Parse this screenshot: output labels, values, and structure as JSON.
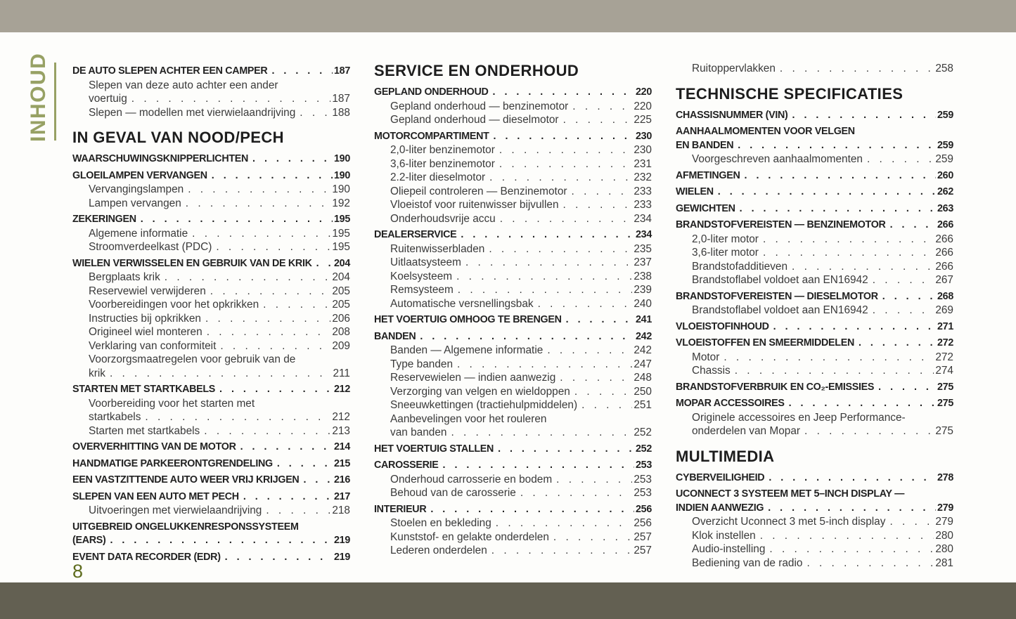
{
  "page": {
    "sidebar_label": "INHOUD",
    "page_number": "8",
    "colors": {
      "top_bar": "#a7a296",
      "bottom_bar": "#636052",
      "accent_green": "#97a164",
      "page_number_green": "#5e6c1e"
    }
  },
  "columns": [
    {
      "blocks": [
        {
          "type": "entry",
          "level": "main",
          "lines": [
            "DE AUTO SLEPEN ACHTER EEN CAMPER"
          ],
          "page": "187"
        },
        {
          "type": "entry",
          "level": "sub",
          "lines": [
            "Slepen van deze auto achter een ander",
            "voertuig"
          ],
          "page": "187"
        },
        {
          "type": "entry",
          "level": "sub",
          "lines": [
            "Slepen — modellen met vierwielaandrijving"
          ],
          "page": "188"
        },
        {
          "type": "header",
          "text": "IN GEVAL VAN NOOD/PECH"
        },
        {
          "type": "entry",
          "level": "main",
          "lines": [
            "WAARSCHUWINGSKNIPPERLICHTEN"
          ],
          "page": "190"
        },
        {
          "type": "entry",
          "level": "main",
          "lines": [
            "GLOEILAMPEN VERVANGEN"
          ],
          "page": "190"
        },
        {
          "type": "entry",
          "level": "sub",
          "lines": [
            "Vervangingslampen"
          ],
          "page": "190"
        },
        {
          "type": "entry",
          "level": "sub",
          "lines": [
            "Lampen vervangen"
          ],
          "page": "192"
        },
        {
          "type": "entry",
          "level": "main",
          "lines": [
            "ZEKERINGEN"
          ],
          "page": "195"
        },
        {
          "type": "entry",
          "level": "sub",
          "lines": [
            "Algemene informatie"
          ],
          "page": "195"
        },
        {
          "type": "entry",
          "level": "sub",
          "lines": [
            "Stroomverdeelkast (PDC)"
          ],
          "page": "195"
        },
        {
          "type": "entry",
          "level": "main",
          "lines": [
            "WIELEN VERWISSELEN EN GEBRUIK VAN DE KRIK"
          ],
          "page": "204"
        },
        {
          "type": "entry",
          "level": "sub",
          "lines": [
            "Bergplaats krik"
          ],
          "page": "204"
        },
        {
          "type": "entry",
          "level": "sub",
          "lines": [
            "Reservewiel verwijderen"
          ],
          "page": "205"
        },
        {
          "type": "entry",
          "level": "sub",
          "lines": [
            "Voorbereidingen voor het opkrikken"
          ],
          "page": "205"
        },
        {
          "type": "entry",
          "level": "sub",
          "lines": [
            "Instructies bij opkrikken"
          ],
          "page": "206"
        },
        {
          "type": "entry",
          "level": "sub",
          "lines": [
            "Origineel wiel monteren"
          ],
          "page": "208"
        },
        {
          "type": "entry",
          "level": "sub",
          "lines": [
            "Verklaring van conformiteit"
          ],
          "page": "209"
        },
        {
          "type": "entry",
          "level": "sub",
          "lines": [
            "Voorzorgsmaatregelen voor gebruik van de",
            "krik"
          ],
          "page": "211"
        },
        {
          "type": "entry",
          "level": "main",
          "lines": [
            "STARTEN MET STARTKABELS"
          ],
          "page": "212"
        },
        {
          "type": "entry",
          "level": "sub",
          "lines": [
            "Voorbereiding voor het starten met",
            "startkabels"
          ],
          "page": "212"
        },
        {
          "type": "entry",
          "level": "sub",
          "lines": [
            "Starten met startkabels"
          ],
          "page": "213"
        },
        {
          "type": "entry",
          "level": "main",
          "lines": [
            "OVERVERHITTING VAN DE MOTOR"
          ],
          "page": "214"
        },
        {
          "type": "entry",
          "level": "main",
          "lines": [
            "HANDMATIGE PARKEERONTGRENDELING"
          ],
          "page": "215"
        },
        {
          "type": "entry",
          "level": "main",
          "lines": [
            "EEN VASTZITTENDE AUTO WEER VRIJ KRIJGEN"
          ],
          "page": "216"
        },
        {
          "type": "entry",
          "level": "main",
          "lines": [
            "SLEPEN VAN EEN AUTO MET PECH"
          ],
          "page": "217"
        },
        {
          "type": "entry",
          "level": "sub",
          "lines": [
            "Uitvoeringen met vierwielaandrijving"
          ],
          "page": "218"
        },
        {
          "type": "entry",
          "level": "main",
          "lines": [
            "UITGEBREID ONGELUKKENRESPONSSYSTEEM",
            "(EARS)"
          ],
          "page": "219"
        },
        {
          "type": "entry",
          "level": "main",
          "lines": [
            "EVENT DATA RECORDER (EDR)"
          ],
          "page": "219"
        }
      ]
    },
    {
      "blocks": [
        {
          "type": "header",
          "text": "SERVICE EN ONDERHOUD"
        },
        {
          "type": "entry",
          "level": "main",
          "lines": [
            "GEPLAND ONDERHOUD"
          ],
          "page": "220"
        },
        {
          "type": "entry",
          "level": "sub",
          "lines": [
            "Gepland onderhoud — benzinemotor"
          ],
          "page": "220"
        },
        {
          "type": "entry",
          "level": "sub",
          "lines": [
            "Gepland onderhoud — dieselmotor"
          ],
          "page": "225"
        },
        {
          "type": "entry",
          "level": "main",
          "lines": [
            "MOTORCOMPARTIMENT"
          ],
          "page": "230"
        },
        {
          "type": "entry",
          "level": "sub",
          "lines": [
            "2,0-liter benzinemotor"
          ],
          "page": "230"
        },
        {
          "type": "entry",
          "level": "sub",
          "lines": [
            "3,6-liter benzinemotor"
          ],
          "page": "231"
        },
        {
          "type": "entry",
          "level": "sub",
          "lines": [
            "2.2-liter dieselmotor"
          ],
          "page": "232"
        },
        {
          "type": "entry",
          "level": "sub",
          "lines": [
            "Oliepeil controleren — Benzinemotor"
          ],
          "page": "233"
        },
        {
          "type": "entry",
          "level": "sub",
          "lines": [
            "Vloeistof voor ruitenwisser bijvullen"
          ],
          "page": "233"
        },
        {
          "type": "entry",
          "level": "sub",
          "lines": [
            "Onderhoudsvrije accu"
          ],
          "page": "234"
        },
        {
          "type": "entry",
          "level": "main",
          "lines": [
            "DEALERSERVICE"
          ],
          "page": "234"
        },
        {
          "type": "entry",
          "level": "sub",
          "lines": [
            "Ruitenwisserbladen"
          ],
          "page": "235"
        },
        {
          "type": "entry",
          "level": "sub",
          "lines": [
            "Uitlaatsysteem"
          ],
          "page": "237"
        },
        {
          "type": "entry",
          "level": "sub",
          "lines": [
            "Koelsysteem"
          ],
          "page": "238"
        },
        {
          "type": "entry",
          "level": "sub",
          "lines": [
            "Remsysteem"
          ],
          "page": "239"
        },
        {
          "type": "entry",
          "level": "sub",
          "lines": [
            "Automatische versnellingsbak"
          ],
          "page": "240"
        },
        {
          "type": "entry",
          "level": "main",
          "lines": [
            "HET VOERTUIG OMHOOG TE BRENGEN"
          ],
          "page": "241"
        },
        {
          "type": "entry",
          "level": "main",
          "lines": [
            "BANDEN"
          ],
          "page": "242"
        },
        {
          "type": "entry",
          "level": "sub",
          "lines": [
            "Banden — Algemene informatie"
          ],
          "page": "242"
        },
        {
          "type": "entry",
          "level": "sub",
          "lines": [
            "Type banden"
          ],
          "page": "247"
        },
        {
          "type": "entry",
          "level": "sub",
          "lines": [
            "Reservewielen — indien aanwezig"
          ],
          "page": "248"
        },
        {
          "type": "entry",
          "level": "sub",
          "lines": [
            "Verzorging van velgen en wieldoppen"
          ],
          "page": "250"
        },
        {
          "type": "entry",
          "level": "sub",
          "lines": [
            "Sneeuwkettingen (tractiehulpmiddelen)"
          ],
          "page": "251"
        },
        {
          "type": "entry",
          "level": "sub",
          "lines": [
            "Aanbevelingen voor het rouleren",
            "van banden"
          ],
          "page": "252"
        },
        {
          "type": "entry",
          "level": "main",
          "lines": [
            "HET VOERTUIG STALLEN"
          ],
          "page": "252"
        },
        {
          "type": "entry",
          "level": "main",
          "lines": [
            "CAROSSERIE"
          ],
          "page": "253"
        },
        {
          "type": "entry",
          "level": "sub",
          "lines": [
            "Onderhoud carrosserie en bodem"
          ],
          "page": "253"
        },
        {
          "type": "entry",
          "level": "sub",
          "lines": [
            "Behoud van de carosserie"
          ],
          "page": "253"
        },
        {
          "type": "entry",
          "level": "main",
          "lines": [
            "INTERIEUR"
          ],
          "page": "256"
        },
        {
          "type": "entry",
          "level": "sub",
          "lines": [
            "Stoelen en bekleding"
          ],
          "page": "256"
        },
        {
          "type": "entry",
          "level": "sub",
          "lines": [
            "Kunststof- en gelakte onderdelen"
          ],
          "page": "257"
        },
        {
          "type": "entry",
          "level": "sub",
          "lines": [
            "Lederen onderdelen"
          ],
          "page": "257"
        }
      ]
    },
    {
      "blocks": [
        {
          "type": "entry",
          "level": "sub",
          "lines": [
            "Ruitoppervlakken"
          ],
          "page": "258"
        },
        {
          "type": "header",
          "text": "TECHNISCHE SPECIFICATIES"
        },
        {
          "type": "entry",
          "level": "main",
          "lines": [
            "CHASSISNUMMER (VIN)"
          ],
          "page": "259"
        },
        {
          "type": "entry",
          "level": "main",
          "lines": [
            "AANHAALMOMENTEN VOOR VELGEN",
            "EN BANDEN"
          ],
          "page": "259"
        },
        {
          "type": "entry",
          "level": "sub",
          "lines": [
            "Voorgeschreven aanhaalmomenten"
          ],
          "page": "259"
        },
        {
          "type": "entry",
          "level": "main",
          "lines": [
            "AFMETINGEN"
          ],
          "page": "260"
        },
        {
          "type": "entry",
          "level": "main",
          "lines": [
            "WIELEN"
          ],
          "page": "262"
        },
        {
          "type": "entry",
          "level": "main",
          "lines": [
            "GEWICHTEN"
          ],
          "page": "263"
        },
        {
          "type": "entry",
          "level": "main",
          "lines": [
            "BRANDSTOFVEREISTEN — BENZINEMOTOR"
          ],
          "page": "266"
        },
        {
          "type": "entry",
          "level": "sub",
          "lines": [
            "2,0-liter motor"
          ],
          "page": "266"
        },
        {
          "type": "entry",
          "level": "sub",
          "lines": [
            "3,6-liter motor"
          ],
          "page": "266"
        },
        {
          "type": "entry",
          "level": "sub",
          "lines": [
            "Brandstofadditieven"
          ],
          "page": "266"
        },
        {
          "type": "entry",
          "level": "sub",
          "lines": [
            "Brandstoflabel voldoet aan EN16942"
          ],
          "page": "267"
        },
        {
          "type": "entry",
          "level": "main",
          "lines": [
            "BRANDSTOFVEREISTEN — DIESELMOTOR"
          ],
          "page": "268"
        },
        {
          "type": "entry",
          "level": "sub",
          "lines": [
            "Brandstoflabel voldoet aan EN16942"
          ],
          "page": "269"
        },
        {
          "type": "entry",
          "level": "main",
          "lines": [
            "VLOEISTOFINHOUD"
          ],
          "page": "271"
        },
        {
          "type": "entry",
          "level": "main",
          "lines": [
            "VLOEISTOFFEN EN SMEERMIDDELEN"
          ],
          "page": "272"
        },
        {
          "type": "entry",
          "level": "sub",
          "lines": [
            "Motor"
          ],
          "page": "272"
        },
        {
          "type": "entry",
          "level": "sub",
          "lines": [
            "Chassis"
          ],
          "page": "274"
        },
        {
          "type": "entry",
          "level": "main",
          "lines": [
            "BRANDSTOFVERBRUIK EN CO₂-EMISSIES"
          ],
          "page": "275"
        },
        {
          "type": "entry",
          "level": "main",
          "lines": [
            "MOPAR ACCESSOIRES"
          ],
          "page": "275"
        },
        {
          "type": "entry",
          "level": "sub",
          "lines": [
            "Originele accessoires en Jeep Performance-",
            "onderdelen van Mopar"
          ],
          "page": "275"
        },
        {
          "type": "header",
          "text": "MULTIMEDIA"
        },
        {
          "type": "entry",
          "level": "main",
          "lines": [
            "CYBERVEILIGHEID"
          ],
          "page": "278"
        },
        {
          "type": "entry",
          "level": "main",
          "lines": [
            "UCONNECT 3 SYSTEEM MET 5–INCH DISPLAY —",
            "INDIEN AANWEZIG"
          ],
          "page": "279"
        },
        {
          "type": "entry",
          "level": "sub",
          "lines": [
            "Overzicht Uconnect 3 met 5-inch display"
          ],
          "page": "279"
        },
        {
          "type": "entry",
          "level": "sub",
          "lines": [
            "Klok instellen"
          ],
          "page": "280"
        },
        {
          "type": "entry",
          "level": "sub",
          "lines": [
            "Audio-instelling"
          ],
          "page": "280"
        },
        {
          "type": "entry",
          "level": "sub",
          "lines": [
            "Bediening van de radio"
          ],
          "page": "281"
        }
      ]
    }
  ]
}
